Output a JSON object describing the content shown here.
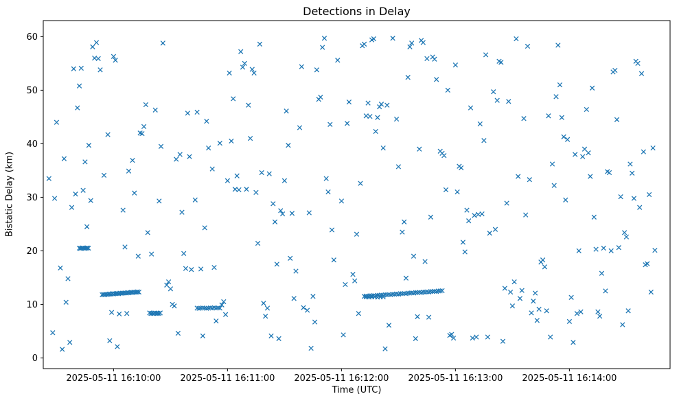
{
  "chart_data": {
    "type": "scatter",
    "title": "Detections in Delay",
    "xlabel": "Time (UTC)",
    "ylabel": "Bistatic Delay (km)",
    "marker": "x",
    "marker_color": "#1f77b4",
    "grid": false,
    "legend": null,
    "x_unit": "seconds after 2025-05-11 16:09:00 UTC",
    "xlim": [
      23,
      353
    ],
    "ylim": [
      -2,
      63
    ],
    "x_ticks": [
      60,
      120,
      180,
      240,
      300
    ],
    "x_tick_labels": [
      "2025-05-11 16:10:00",
      "2025-05-11 16:11:00",
      "2025-05-11 16:12:00",
      "2025-05-11 16:13:00",
      "2025-05-11 16:14:00"
    ],
    "y_ticks": [
      0,
      10,
      20,
      30,
      40,
      50,
      60
    ],
    "points": [
      [
        26,
        33.5
      ],
      [
        28,
        4.7
      ],
      [
        29,
        29.8
      ],
      [
        30,
        44.0
      ],
      [
        32,
        16.8
      ],
      [
        33,
        1.6
      ],
      [
        34,
        37.2
      ],
      [
        35,
        10.4
      ],
      [
        36,
        14.8
      ],
      [
        37,
        2.9
      ],
      [
        38,
        28.1
      ],
      [
        39,
        54.0
      ],
      [
        40,
        30.6
      ],
      [
        41,
        46.7
      ],
      [
        42,
        50.8
      ],
      [
        43,
        54.1
      ],
      [
        44,
        31.3
      ],
      [
        45,
        36.6
      ],
      [
        46,
        24.5
      ],
      [
        47,
        39.7
      ],
      [
        48,
        29.4
      ],
      [
        49,
        58.1
      ],
      [
        50,
        56.0
      ],
      [
        51,
        58.9
      ],
      [
        52,
        55.9
      ],
      [
        53,
        53.8
      ],
      [
        55,
        34.1
      ],
      [
        57,
        41.7
      ],
      [
        58,
        3.2
      ],
      [
        59,
        8.5
      ],
      [
        60,
        56.3
      ],
      [
        61,
        55.6
      ],
      [
        62,
        2.1
      ],
      [
        63,
        8.2
      ],
      [
        65,
        27.6
      ],
      [
        66,
        20.7
      ],
      [
        67,
        8.3
      ],
      [
        68,
        34.9
      ],
      [
        70,
        36.9
      ],
      [
        71,
        30.8
      ],
      [
        73,
        19.0
      ],
      [
        74,
        42.0
      ],
      [
        75,
        41.9
      ],
      [
        76,
        43.2
      ],
      [
        77,
        47.3
      ],
      [
        78,
        23.4
      ],
      [
        80,
        19.4
      ],
      [
        82,
        46.3
      ],
      [
        84,
        29.3
      ],
      [
        85,
        39.5
      ],
      [
        86,
        58.8
      ],
      [
        88,
        13.6
      ],
      [
        89,
        14.2
      ],
      [
        90,
        12.9
      ],
      [
        91,
        10.0
      ],
      [
        92,
        9.7
      ],
      [
        93,
        37.1
      ],
      [
        94,
        4.6
      ],
      [
        95,
        38.0
      ],
      [
        96,
        27.2
      ],
      [
        97,
        19.5
      ],
      [
        98,
        16.7
      ],
      [
        99,
        45.7
      ],
      [
        100,
        37.6
      ],
      [
        101,
        16.5
      ],
      [
        103,
        29.5
      ],
      [
        104,
        45.9
      ],
      [
        106,
        16.6
      ],
      [
        107,
        4.1
      ],
      [
        108,
        24.3
      ],
      [
        109,
        44.2
      ],
      [
        110,
        39.2
      ],
      [
        112,
        35.3
      ],
      [
        113,
        16.9
      ],
      [
        114,
        6.9
      ],
      [
        116,
        40.1
      ],
      [
        117,
        9.9
      ],
      [
        118,
        10.5
      ],
      [
        119,
        8.1
      ],
      [
        120,
        33.1
      ],
      [
        121,
        53.2
      ],
      [
        122,
        40.5
      ],
      [
        123,
        48.4
      ],
      [
        124,
        31.5
      ],
      [
        125,
        34.0
      ],
      [
        126,
        31.4
      ],
      [
        127,
        57.2
      ],
      [
        128,
        54.3
      ],
      [
        129,
        55.0
      ],
      [
        130,
        31.5
      ],
      [
        131,
        47.2
      ],
      [
        132,
        41.0
      ],
      [
        133,
        53.9
      ],
      [
        134,
        53.2
      ],
      [
        135,
        30.9
      ],
      [
        136,
        21.4
      ],
      [
        137,
        58.6
      ],
      [
        138,
        34.6
      ],
      [
        139,
        10.2
      ],
      [
        140,
        7.8
      ],
      [
        141,
        9.3
      ],
      [
        142,
        34.4
      ],
      [
        143,
        4.1
      ],
      [
        144,
        28.8
      ],
      [
        145,
        25.4
      ],
      [
        146,
        17.5
      ],
      [
        147,
        3.6
      ],
      [
        148,
        27.5
      ],
      [
        149,
        26.9
      ],
      [
        150,
        33.1
      ],
      [
        151,
        46.1
      ],
      [
        152,
        39.7
      ],
      [
        153,
        18.6
      ],
      [
        154,
        27.0
      ],
      [
        155,
        11.1
      ],
      [
        156,
        16.2
      ],
      [
        158,
        43.0
      ],
      [
        159,
        54.4
      ],
      [
        160,
        9.4
      ],
      [
        162,
        8.9
      ],
      [
        163,
        27.1
      ],
      [
        164,
        1.8
      ],
      [
        165,
        11.5
      ],
      [
        166,
        6.7
      ],
      [
        167,
        53.8
      ],
      [
        168,
        48.3
      ],
      [
        169,
        48.7
      ],
      [
        170,
        58.0
      ],
      [
        171,
        59.7
      ],
      [
        172,
        33.5
      ],
      [
        173,
        31.0
      ],
      [
        174,
        43.6
      ],
      [
        175,
        23.9
      ],
      [
        176,
        18.3
      ],
      [
        178,
        55.6
      ],
      [
        180,
        29.3
      ],
      [
        181,
        4.3
      ],
      [
        182,
        13.7
      ],
      [
        183,
        43.8
      ],
      [
        184,
        47.8
      ],
      [
        186,
        15.6
      ],
      [
        187,
        14.4
      ],
      [
        188,
        23.1
      ],
      [
        189,
        8.3
      ],
      [
        190,
        32.6
      ],
      [
        191,
        58.3
      ],
      [
        192,
        58.6
      ],
      [
        193,
        45.2
      ],
      [
        194,
        47.6
      ],
      [
        195,
        45.1
      ],
      [
        196,
        59.4
      ],
      [
        197,
        59.6
      ],
      [
        198,
        42.3
      ],
      [
        199,
        44.9
      ],
      [
        200,
        46.9
      ],
      [
        201,
        47.4
      ],
      [
        202,
        39.2
      ],
      [
        203,
        1.7
      ],
      [
        204,
        47.2
      ],
      [
        205,
        6.1
      ],
      [
        207,
        59.7
      ],
      [
        209,
        44.6
      ],
      [
        210,
        35.7
      ],
      [
        212,
        23.5
      ],
      [
        213,
        25.4
      ],
      [
        214,
        14.9
      ],
      [
        215,
        52.4
      ],
      [
        216,
        58.1
      ],
      [
        217,
        58.8
      ],
      [
        218,
        19.0
      ],
      [
        219,
        3.6
      ],
      [
        220,
        7.7
      ],
      [
        221,
        39.0
      ],
      [
        222,
        59.3
      ],
      [
        223,
        58.9
      ],
      [
        224,
        18.0
      ],
      [
        225,
        55.9
      ],
      [
        226,
        7.6
      ],
      [
        227,
        26.3
      ],
      [
        228,
        56.2
      ],
      [
        229,
        55.8
      ],
      [
        230,
        52.0
      ],
      [
        232,
        38.6
      ],
      [
        233,
        38.2
      ],
      [
        234,
        37.8
      ],
      [
        235,
        31.4
      ],
      [
        236,
        50.0
      ],
      [
        237,
        4.2
      ],
      [
        238,
        4.4
      ],
      [
        239,
        3.7
      ],
      [
        240,
        54.7
      ],
      [
        241,
        31.0
      ],
      [
        242,
        35.8
      ],
      [
        243,
        35.5
      ],
      [
        244,
        21.6
      ],
      [
        245,
        19.8
      ],
      [
        246,
        27.6
      ],
      [
        247,
        25.6
      ],
      [
        248,
        46.7
      ],
      [
        249,
        3.7
      ],
      [
        250,
        26.6
      ],
      [
        251,
        3.9
      ],
      [
        252,
        26.8
      ],
      [
        253,
        43.7
      ],
      [
        254,
        26.9
      ],
      [
        255,
        40.6
      ],
      [
        256,
        56.6
      ],
      [
        257,
        3.9
      ],
      [
        258,
        23.3
      ],
      [
        260,
        49.7
      ],
      [
        261,
        24.0
      ],
      [
        262,
        48.1
      ],
      [
        263,
        55.4
      ],
      [
        264,
        55.2
      ],
      [
        265,
        3.1
      ],
      [
        266,
        13.0
      ],
      [
        267,
        28.9
      ],
      [
        268,
        47.9
      ],
      [
        269,
        12.3
      ],
      [
        270,
        9.7
      ],
      [
        271,
        14.2
      ],
      [
        272,
        59.6
      ],
      [
        273,
        33.9
      ],
      [
        274,
        11.1
      ],
      [
        275,
        12.6
      ],
      [
        276,
        44.7
      ],
      [
        277,
        26.7
      ],
      [
        278,
        58.2
      ],
      [
        279,
        33.3
      ],
      [
        280,
        8.4
      ],
      [
        281,
        10.6
      ],
      [
        282,
        12.1
      ],
      [
        283,
        7.0
      ],
      [
        284,
        9.1
      ],
      [
        285,
        17.9
      ],
      [
        286,
        18.3
      ],
      [
        287,
        17.0
      ],
      [
        288,
        8.8
      ],
      [
        289,
        45.2
      ],
      [
        290,
        3.9
      ],
      [
        291,
        36.2
      ],
      [
        292,
        32.2
      ],
      [
        293,
        48.8
      ],
      [
        294,
        58.4
      ],
      [
        295,
        51.0
      ],
      [
        296,
        44.9
      ],
      [
        297,
        41.3
      ],
      [
        298,
        29.5
      ],
      [
        299,
        40.8
      ],
      [
        300,
        6.8
      ],
      [
        301,
        11.3
      ],
      [
        302,
        2.9
      ],
      [
        303,
        38.0
      ],
      [
        304,
        8.3
      ],
      [
        305,
        20.0
      ],
      [
        306,
        8.6
      ],
      [
        307,
        37.6
      ],
      [
        308,
        39.0
      ],
      [
        309,
        46.4
      ],
      [
        310,
        38.3
      ],
      [
        311,
        33.9
      ],
      [
        312,
        50.4
      ],
      [
        313,
        26.3
      ],
      [
        314,
        20.3
      ],
      [
        315,
        8.6
      ],
      [
        316,
        7.8
      ],
      [
        317,
        15.8
      ],
      [
        318,
        20.5
      ],
      [
        319,
        12.5
      ],
      [
        320,
        34.8
      ],
      [
        321,
        34.6
      ],
      [
        322,
        20.0
      ],
      [
        323,
        53.4
      ],
      [
        324,
        53.7
      ],
      [
        325,
        44.5
      ],
      [
        326,
        20.6
      ],
      [
        327,
        30.1
      ],
      [
        328,
        6.2
      ],
      [
        329,
        23.4
      ],
      [
        330,
        22.6
      ],
      [
        331,
        8.8
      ],
      [
        332,
        36.2
      ],
      [
        333,
        34.5
      ],
      [
        334,
        29.8
      ],
      [
        335,
        55.4
      ],
      [
        336,
        55.0
      ],
      [
        337,
        28.1
      ],
      [
        338,
        53.1
      ],
      [
        339,
        38.5
      ],
      [
        340,
        17.4
      ],
      [
        341,
        17.6
      ],
      [
        342,
        30.5
      ],
      [
        343,
        12.3
      ],
      [
        344,
        39.2
      ],
      [
        345,
        20.1
      ],
      [
        42.0,
        20.5
      ],
      [
        42.6,
        20.45
      ],
      [
        43.2,
        20.5
      ],
      [
        43.8,
        20.55
      ],
      [
        44.4,
        20.5
      ],
      [
        45.0,
        20.45
      ],
      [
        45.6,
        20.5
      ],
      [
        46.2,
        20.55
      ],
      [
        46.8,
        20.5
      ],
      [
        54,
        11.8
      ],
      [
        54.7,
        11.85
      ],
      [
        55.4,
        11.8
      ],
      [
        56,
        11.9
      ],
      [
        56.7,
        11.85
      ],
      [
        57.4,
        11.9
      ],
      [
        58,
        11.95
      ],
      [
        58.7,
        11.9
      ],
      [
        59.4,
        12.0
      ],
      [
        60,
        11.95
      ],
      [
        60.7,
        12.0
      ],
      [
        61.4,
        12.0
      ],
      [
        62,
        12.05
      ],
      [
        62.7,
        12.0
      ],
      [
        63.4,
        12.1
      ],
      [
        64,
        12.05
      ],
      [
        64.7,
        12.1
      ],
      [
        65.4,
        12.1
      ],
      [
        66,
        12.15
      ],
      [
        66.7,
        12.1
      ],
      [
        67.4,
        12.2
      ],
      [
        68,
        12.15
      ],
      [
        68.7,
        12.2
      ],
      [
        69.4,
        12.25
      ],
      [
        70,
        12.2
      ],
      [
        70.7,
        12.3
      ],
      [
        71.4,
        12.25
      ],
      [
        72,
        12.3
      ],
      [
        72.7,
        12.35
      ],
      [
        73.4,
        12.3
      ],
      [
        79.0,
        8.4
      ],
      [
        79.7,
        8.3
      ],
      [
        80.4,
        8.35
      ],
      [
        81.1,
        8.3
      ],
      [
        81.8,
        8.4
      ],
      [
        82.5,
        8.3
      ],
      [
        83.2,
        8.35
      ],
      [
        83.9,
        8.3
      ],
      [
        84.6,
        8.4
      ],
      [
        104,
        9.3
      ],
      [
        105,
        9.25
      ],
      [
        106,
        9.3
      ],
      [
        107,
        9.35
      ],
      [
        108,
        9.3
      ],
      [
        109,
        9.25
      ],
      [
        110,
        9.3
      ],
      [
        111,
        9.35
      ],
      [
        112,
        9.3
      ],
      [
        113,
        9.4
      ],
      [
        114,
        9.3
      ],
      [
        115,
        9.35
      ],
      [
        116,
        9.3
      ],
      [
        192,
        11.5
      ],
      [
        193,
        11.55
      ],
      [
        194,
        11.5
      ],
      [
        195,
        11.6
      ],
      [
        196,
        11.6
      ],
      [
        197,
        11.65
      ],
      [
        198,
        11.6
      ],
      [
        199,
        11.7
      ],
      [
        200,
        11.7
      ],
      [
        201,
        11.75
      ],
      [
        202,
        11.7
      ],
      [
        203,
        11.8
      ],
      [
        204,
        11.8
      ],
      [
        205,
        11.85
      ],
      [
        206,
        11.8
      ],
      [
        207,
        11.9
      ],
      [
        208,
        11.9
      ],
      [
        209,
        11.95
      ],
      [
        210,
        11.9
      ],
      [
        211,
        12.0
      ],
      [
        212,
        12.0
      ],
      [
        213,
        12.05
      ],
      [
        214,
        12.0
      ],
      [
        215,
        12.1
      ],
      [
        216,
        12.1
      ],
      [
        217,
        12.15
      ],
      [
        218,
        12.1
      ],
      [
        219,
        12.2
      ],
      [
        220,
        12.2
      ],
      [
        221,
        12.25
      ],
      [
        222,
        12.2
      ],
      [
        223,
        12.3
      ],
      [
        224,
        12.3
      ],
      [
        225,
        12.35
      ],
      [
        226,
        12.3
      ],
      [
        227,
        12.4
      ],
      [
        228,
        12.4
      ],
      [
        229,
        12.45
      ],
      [
        230,
        12.4
      ],
      [
        231,
        12.5
      ],
      [
        232,
        12.5
      ],
      [
        233,
        12.55
      ],
      [
        193,
        11.4
      ],
      [
        194.5,
        11.35
      ],
      [
        196,
        11.4
      ],
      [
        197.5,
        11.4
      ],
      [
        199,
        11.35
      ],
      [
        200.5,
        11.4
      ],
      [
        202,
        11.4
      ]
    ]
  }
}
